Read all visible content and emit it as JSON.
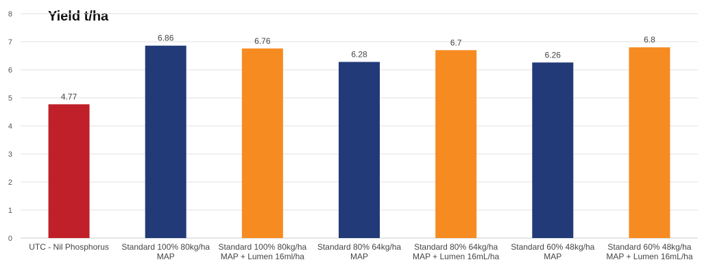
{
  "chart_data": {
    "type": "bar",
    "title": "Yield t/ha",
    "xlabel": "",
    "ylabel": "",
    "ylim": [
      0,
      8
    ],
    "yticks": [
      0,
      1,
      2,
      3,
      4,
      5,
      6,
      7,
      8
    ],
    "grid": true,
    "categories": [
      [
        "UTC - Nil Phosphorus"
      ],
      [
        "Standard 100% 80kg/ha",
        "MAP"
      ],
      [
        "Standard 100% 80kg/ha",
        "MAP + Lumen 16ml/ha"
      ],
      [
        "Standard 80% 64kg/ha",
        "MAP"
      ],
      [
        "Standard 80% 64kg/ha",
        "MAP + Lumen 16mL/ha"
      ],
      [
        "Standard 60% 48kg/ha",
        "MAP"
      ],
      [
        "Standard 60% 48kg/ha",
        "MAP + Lumen 16mL/ha"
      ]
    ],
    "values": [
      4.77,
      6.86,
      6.76,
      6.28,
      6.7,
      6.26,
      6.8
    ],
    "value_labels": [
      "4.77",
      "6.86",
      "6.76",
      "6.28",
      "6.7",
      "6.26",
      "6.8"
    ],
    "colors": [
      "#c0202a",
      "#233a78",
      "#f68b21",
      "#233a78",
      "#f68b21",
      "#233a78",
      "#f68b21"
    ]
  }
}
